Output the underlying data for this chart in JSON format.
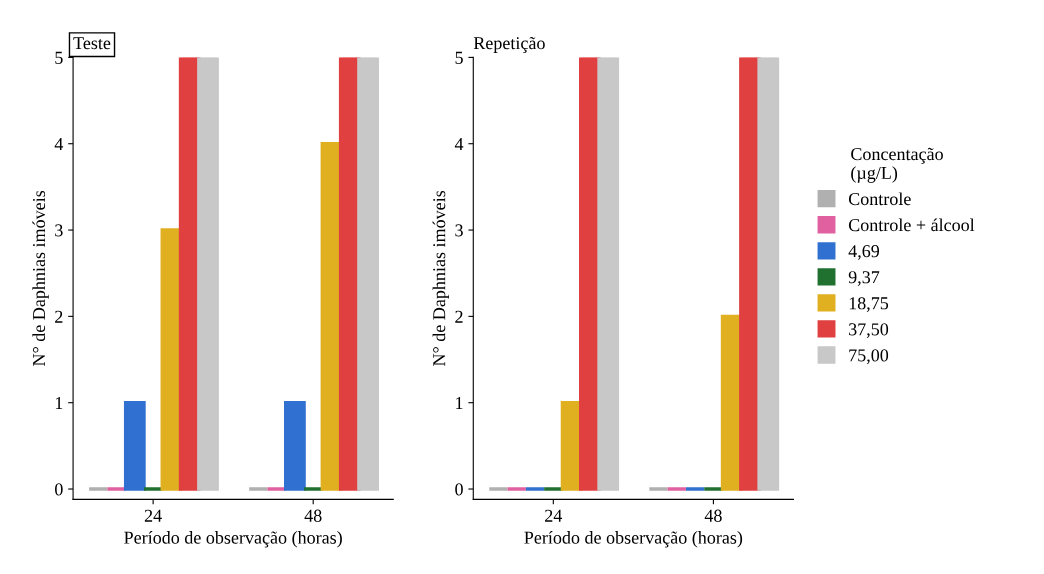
{
  "chart_data": [
    {
      "type": "bar",
      "title": "Teste",
      "xlabel": "Período de observação (horas)",
      "ylabel": "N° de Daphnias imóveis",
      "categories": [
        "24",
        "48"
      ],
      "ylim": [
        -0.12,
        5
      ],
      "yticks": [
        0,
        1,
        2,
        3,
        4,
        5
      ],
      "grid": false,
      "series": [
        {
          "color": "#b0b0b0",
          "values": [
            0,
            0
          ]
        },
        {
          "color": "#e060a0",
          "values": [
            0,
            0
          ]
        },
        {
          "color": "#3070d0",
          "values": [
            1,
            1
          ]
        },
        {
          "color": "#207030",
          "values": [
            0,
            0
          ]
        },
        {
          "color": "#e0b020",
          "values": [
            3,
            4
          ]
        },
        {
          "color": "#e04040",
          "values": [
            5,
            5
          ]
        },
        {
          "color": "#c8c8c8",
          "values": [
            5,
            5
          ]
        }
      ]
    },
    {
      "type": "bar",
      "title": "Repetição",
      "xlabel": "Período de observação (horas)",
      "ylabel": "N° de Daphnias imóveis",
      "categories": [
        "24",
        "48"
      ],
      "ylim": [
        -0.12,
        5
      ],
      "yticks": [
        0,
        1,
        2,
        3,
        4,
        5
      ],
      "grid": false,
      "legend": "right",
      "legend_title": "Concentação\n(µg/L)",
      "series": [
        {
          "name": "Controle",
          "color": "#b0b0b0",
          "values": [
            0,
            0
          ]
        },
        {
          "name": "Controle + álcool",
          "color": "#e060a0",
          "values": [
            0,
            0
          ]
        },
        {
          "name": "4,69",
          "color": "#3070d0",
          "values": [
            0,
            0
          ]
        },
        {
          "name": "9,37",
          "color": "#207030",
          "values": [
            0,
            0
          ]
        },
        {
          "name": "18,75",
          "color": "#e0b020",
          "values": [
            1,
            2
          ]
        },
        {
          "name": "37,50",
          "color": "#e04040",
          "values": [
            5,
            5
          ]
        },
        {
          "name": "75,00",
          "color": "#c8c8c8",
          "values": [
            5,
            5
          ]
        }
      ]
    }
  ]
}
